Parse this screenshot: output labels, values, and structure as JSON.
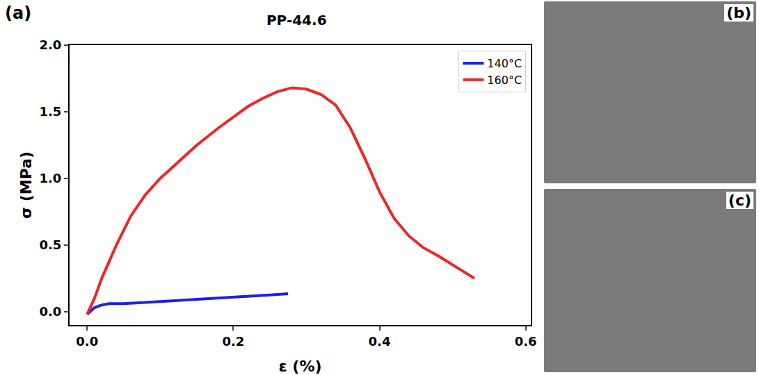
{
  "chart_data": {
    "type": "line",
    "label": "(a)",
    "title": "PP-44.6",
    "x_label": "ε (%)",
    "y_label": "σ (MPa)",
    "xlim": [
      -0.024,
      0.607
    ],
    "xticks": [
      {
        "value": 0,
        "label": "0.0"
      },
      {
        "value": 0.2,
        "label": "0.2"
      },
      {
        "value": 0.4,
        "label": "0.4"
      },
      {
        "value": 0.6,
        "label": "0.6"
      }
    ],
    "ylim": [
      -0.1,
      2.0
    ],
    "yticks": [
      {
        "value": 0,
        "label": "0.0"
      },
      {
        "value": 0.5,
        "label": "0.5"
      },
      {
        "value": 1,
        "label": "1.0"
      },
      {
        "value": 1.5,
        "label": "1.5"
      },
      {
        "value": 2,
        "label": "2.0"
      }
    ],
    "grid": false,
    "legend": "upper right",
    "series": [
      {
        "name": "140°C",
        "color": "#1f1fe8",
        "x": [
          0,
          0.01,
          0.02,
          0.03,
          0.05,
          0.1,
          0.15,
          0.2,
          0.25,
          0.275
        ],
        "values": [
          -0.02,
          0.03,
          0.05,
          0.06,
          0.06,
          0.075,
          0.09,
          0.105,
          0.125,
          0.135
        ]
      },
      {
        "name": "160°C",
        "color": "#f02525",
        "x": [
          0,
          0.01,
          0.02,
          0.04,
          0.06,
          0.08,
          0.1,
          0.12,
          0.15,
          0.18,
          0.2,
          0.22,
          0.24,
          0.26,
          0.28,
          0.3,
          0.32,
          0.34,
          0.36,
          0.38,
          0.4,
          0.42,
          0.44,
          0.46,
          0.48,
          0.5,
          0.53
        ],
        "values": [
          -0.02,
          0.1,
          0.25,
          0.5,
          0.72,
          0.88,
          1.0,
          1.1,
          1.25,
          1.38,
          1.46,
          1.54,
          1.6,
          1.65,
          1.68,
          1.67,
          1.63,
          1.55,
          1.38,
          1.15,
          0.9,
          0.7,
          0.57,
          0.48,
          0.42,
          0.35,
          0.25
        ]
      }
    ]
  },
  "photos": [
    {
      "label": "(b)"
    },
    {
      "label": "(c)"
    }
  ]
}
